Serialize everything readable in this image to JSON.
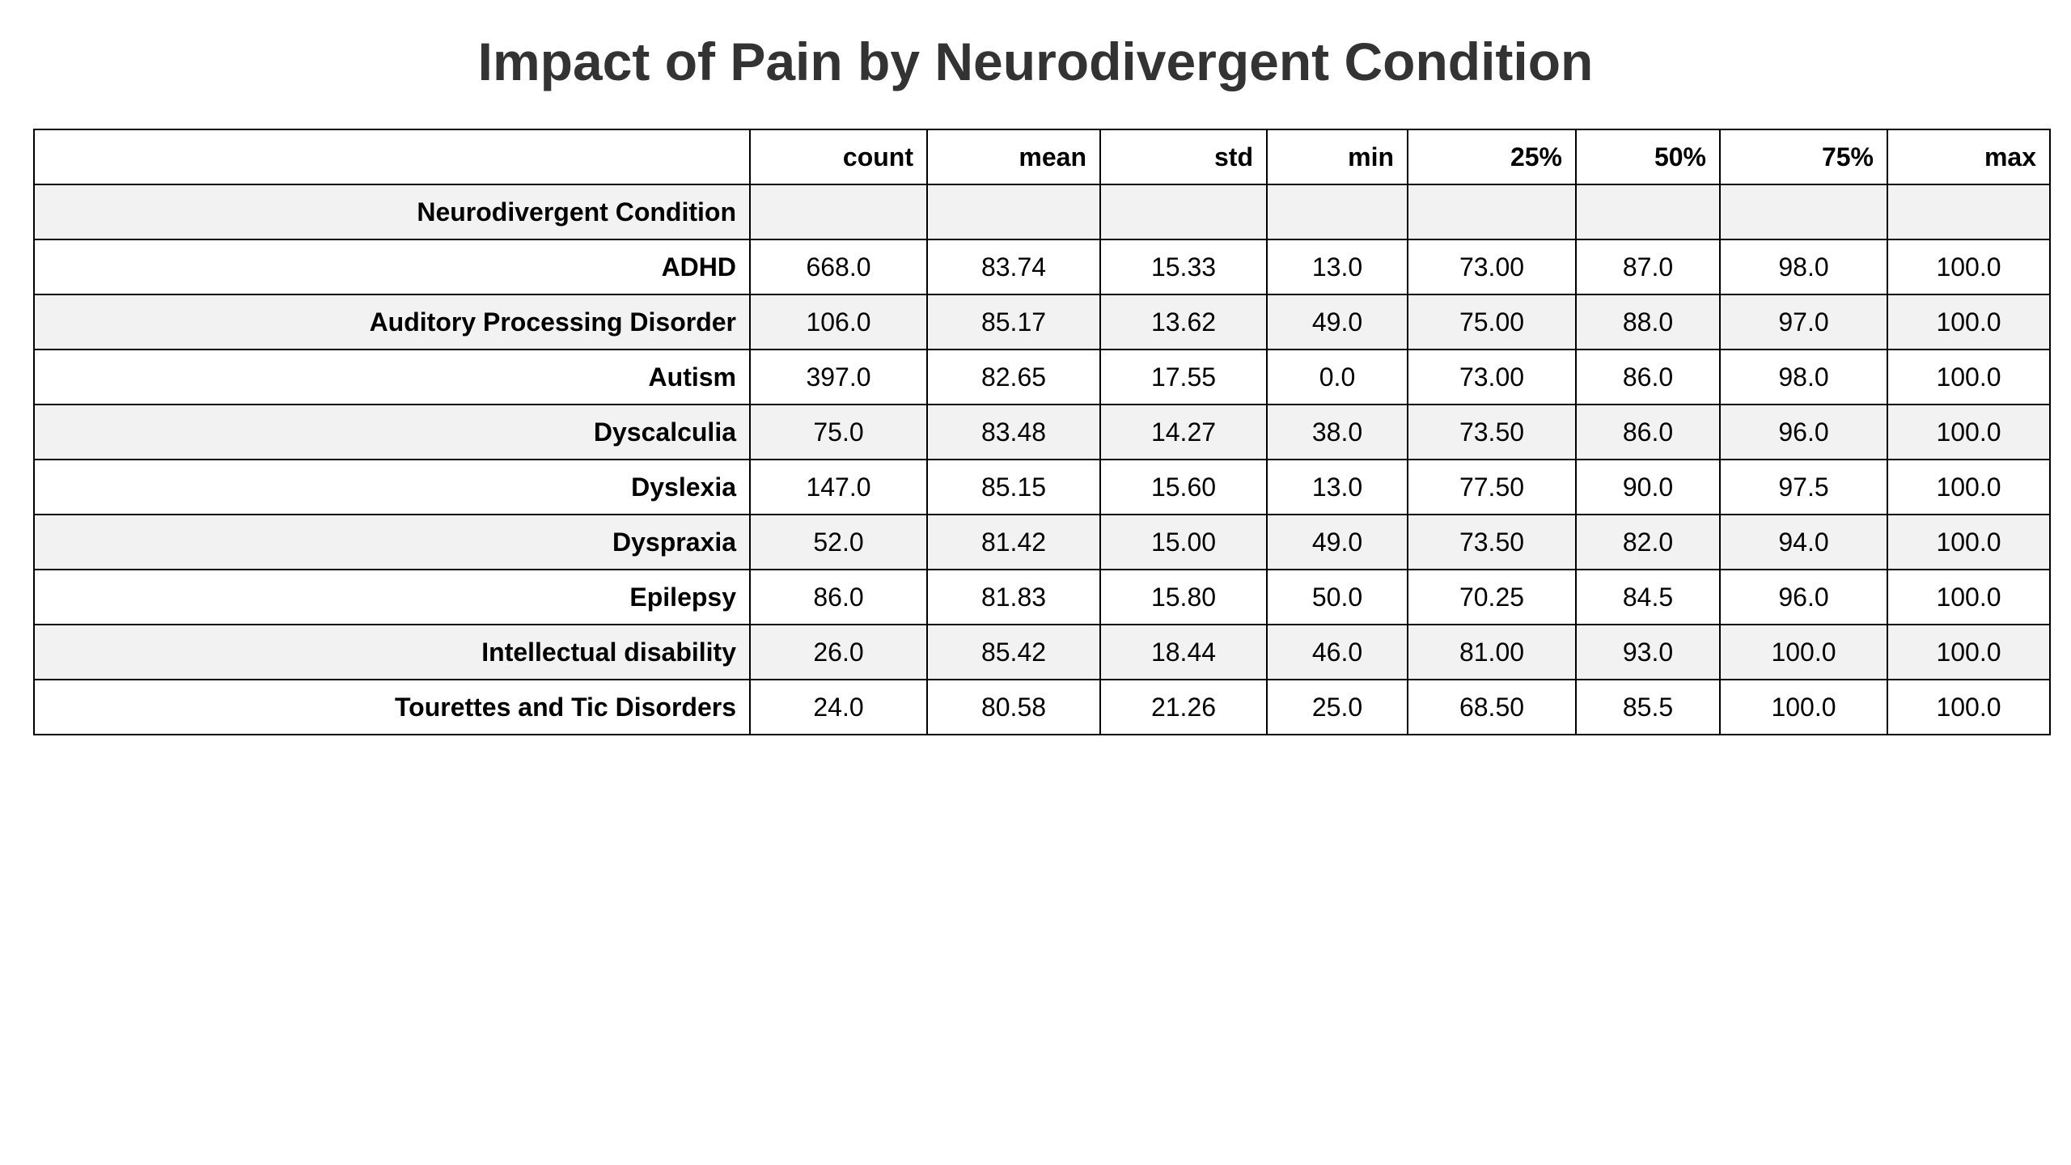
{
  "chart_data": {
    "type": "table",
    "title": "Impact of Pain by Neurodivergent Condition",
    "index_name": "Neurodivergent Condition",
    "columns": [
      "count",
      "mean",
      "std",
      "min",
      "25%",
      "50%",
      "75%",
      "max"
    ],
    "rows": [
      {
        "label": "ADHD",
        "values": [
          "668.0",
          "83.74",
          "15.33",
          "13.0",
          "73.00",
          "87.0",
          "98.0",
          "100.0"
        ]
      },
      {
        "label": "Auditory Processing Disorder",
        "values": [
          "106.0",
          "85.17",
          "13.62",
          "49.0",
          "75.00",
          "88.0",
          "97.0",
          "100.0"
        ]
      },
      {
        "label": "Autism",
        "values": [
          "397.0",
          "82.65",
          "17.55",
          "0.0",
          "73.00",
          "86.0",
          "98.0",
          "100.0"
        ]
      },
      {
        "label": "Dyscalculia",
        "values": [
          "75.0",
          "83.48",
          "14.27",
          "38.0",
          "73.50",
          "86.0",
          "96.0",
          "100.0"
        ]
      },
      {
        "label": "Dyslexia",
        "values": [
          "147.0",
          "85.15",
          "15.60",
          "13.0",
          "77.50",
          "90.0",
          "97.5",
          "100.0"
        ]
      },
      {
        "label": "Dyspraxia",
        "values": [
          "52.0",
          "81.42",
          "15.00",
          "49.0",
          "73.50",
          "82.0",
          "94.0",
          "100.0"
        ]
      },
      {
        "label": "Epilepsy",
        "values": [
          "86.0",
          "81.83",
          "15.80",
          "50.0",
          "70.25",
          "84.5",
          "96.0",
          "100.0"
        ]
      },
      {
        "label": "Intellectual disability",
        "values": [
          "26.0",
          "85.42",
          "18.44",
          "46.0",
          "81.00",
          "93.0",
          "100.0",
          "100.0"
        ]
      },
      {
        "label": "Tourettes and Tic Disorders",
        "values": [
          "24.0",
          "80.58",
          "21.26",
          "25.0",
          "68.50",
          "85.5",
          "100.0",
          "100.0"
        ]
      }
    ]
  },
  "colors": {
    "title": "#333333",
    "shaded_row": "#f2f2f2",
    "border": "#000000"
  }
}
